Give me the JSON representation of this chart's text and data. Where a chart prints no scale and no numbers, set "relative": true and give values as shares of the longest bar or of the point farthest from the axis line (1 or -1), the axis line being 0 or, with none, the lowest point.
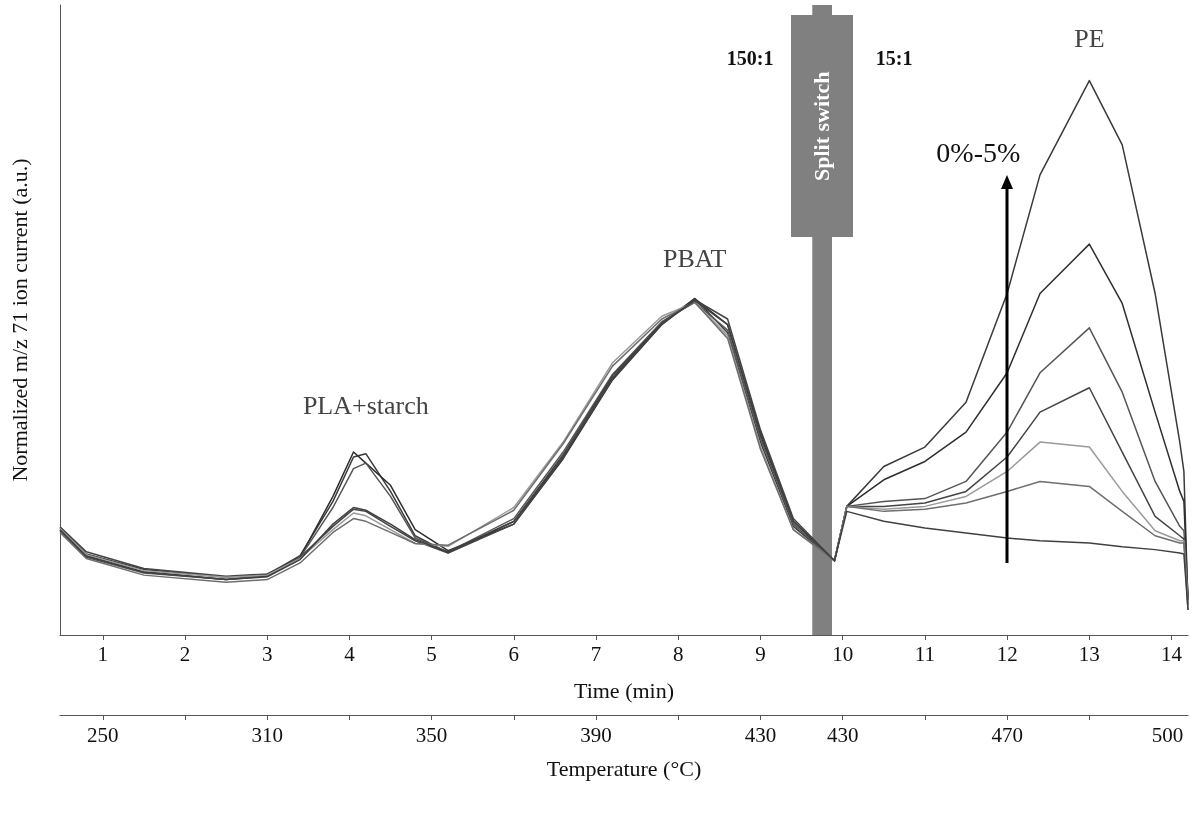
{
  "chart_data": {
    "type": "line",
    "relative": true,
    "xlabel": "Time (min)",
    "ylabel": "Normalized m/z 71 ion current (a.u.)",
    "x2label": "Temperature (°C)",
    "xlim": [
      0.48,
      14.2
    ],
    "xticks": [
      1,
      2,
      3,
      4,
      5,
      6,
      7,
      8,
      9,
      10,
      11,
      12,
      13,
      14
    ],
    "x": [
      0.48,
      0.8,
      1.5,
      2.5,
      3.0,
      3.4,
      3.8,
      4.05,
      4.2,
      4.5,
      4.8,
      5.2,
      6.0,
      6.6,
      7.2,
      7.8,
      8.2,
      8.6,
      9.0,
      9.4,
      9.9,
      10.05,
      10.5,
      11.0,
      11.5,
      12.0,
      12.4,
      13.0,
      13.4,
      13.8,
      14.1,
      14.15,
      14.2
    ],
    "series": [
      {
        "color": "#3a3a3a",
        "values": [
          0.193,
          0.146,
          0.118,
          0.104,
          0.109,
          0.143,
          0.241,
          0.321,
          0.327,
          0.259,
          0.179,
          0.148,
          0.205,
          0.321,
          0.464,
          0.563,
          0.607,
          0.545,
          0.348,
          0.196,
          0.134,
          0.232,
          0.304,
          0.339,
          0.42,
          0.616,
          0.83,
          1.0,
          0.884,
          0.616,
          0.348,
          0.295,
          0.054
        ]
      },
      {
        "color": "#2e2e2e",
        "values": [
          0.19,
          0.143,
          0.114,
          0.1,
          0.106,
          0.14,
          0.25,
          0.33,
          0.31,
          0.27,
          0.19,
          0.152,
          0.2,
          0.318,
          0.46,
          0.56,
          0.607,
          0.56,
          0.36,
          0.205,
          0.134,
          0.232,
          0.28,
          0.313,
          0.366,
          0.473,
          0.616,
          0.705,
          0.598,
          0.402,
          0.259,
          0.241,
          0.063
        ]
      },
      {
        "color": "#555555",
        "values": [
          0.188,
          0.14,
          0.112,
          0.1,
          0.108,
          0.14,
          0.23,
          0.3,
          0.31,
          0.25,
          0.175,
          0.15,
          0.21,
          0.33,
          0.47,
          0.565,
          0.6,
          0.55,
          0.355,
          0.2,
          0.134,
          0.232,
          0.241,
          0.246,
          0.277,
          0.366,
          0.473,
          0.554,
          0.438,
          0.277,
          0.196,
          0.188,
          0.071
        ]
      },
      {
        "color": "#444444",
        "values": [
          0.195,
          0.15,
          0.12,
          0.106,
          0.11,
          0.14,
          0.196,
          0.227,
          0.223,
          0.196,
          0.17,
          0.148,
          0.2,
          0.32,
          0.462,
          0.56,
          0.605,
          0.57,
          0.37,
          0.21,
          0.134,
          0.232,
          0.232,
          0.238,
          0.259,
          0.321,
          0.402,
          0.446,
          0.33,
          0.214,
          0.179,
          0.173,
          0.063
        ]
      },
      {
        "color": "#9a9a9a",
        "values": [
          0.192,
          0.145,
          0.116,
          0.104,
          0.108,
          0.138,
          0.19,
          0.22,
          0.215,
          0.19,
          0.165,
          0.16,
          0.23,
          0.348,
          0.491,
          0.575,
          0.6,
          0.54,
          0.34,
          0.19,
          0.134,
          0.232,
          0.227,
          0.232,
          0.25,
          0.295,
          0.348,
          0.339,
          0.259,
          0.188,
          0.17,
          0.17,
          0.054
        ]
      },
      {
        "color": "#6e6e6e",
        "values": [
          0.185,
          0.138,
          0.108,
          0.095,
          0.1,
          0.13,
          0.185,
          0.21,
          0.205,
          0.185,
          0.165,
          0.162,
          0.225,
          0.345,
          0.485,
          0.57,
          0.6,
          0.535,
          0.335,
          0.19,
          0.134,
          0.232,
          0.223,
          0.227,
          0.238,
          0.259,
          0.277,
          0.268,
          0.223,
          0.179,
          0.166,
          0.166,
          0.045
        ]
      },
      {
        "color": "#404040",
        "values": [
          0.19,
          0.142,
          0.113,
          0.1,
          0.105,
          0.136,
          0.2,
          0.23,
          0.225,
          0.2,
          0.172,
          0.15,
          0.205,
          0.325,
          0.468,
          0.562,
          0.603,
          0.56,
          0.365,
          0.205,
          0.134,
          0.223,
          0.205,
          0.193,
          0.184,
          0.175,
          0.17,
          0.166,
          0.159,
          0.154,
          0.148,
          0.146,
          0.045
        ]
      }
    ],
    "bands": [
      {
        "axis": "x",
        "from": 9.63,
        "to": 9.87,
        "label": "Split switch",
        "color": "#808080"
      }
    ],
    "annotations": [
      {
        "text": "PLA+starch",
        "x": 4.2,
        "y": 0.327
      },
      {
        "text": "PBAT",
        "x": 8.2,
        "y": 0.607
      },
      {
        "text": "PE",
        "x": 13.0,
        "y": 1.0
      },
      "150:1",
      "15:1",
      "0%-5%",
      "250",
      "310",
      "350",
      "390",
      "430",
      "430",
      "470",
      "500"
    ],
    "tick_labels": "x",
    "grid": false,
    "marker": "none",
    "line_style": "solid"
  }
}
